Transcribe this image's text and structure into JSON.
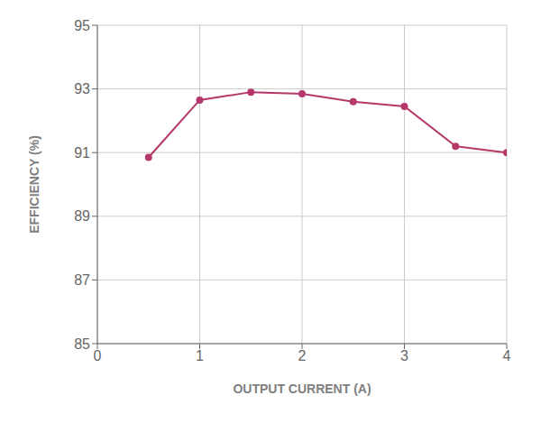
{
  "chart_data": {
    "type": "line",
    "x": [
      0.5,
      1.0,
      1.5,
      2.0,
      2.5,
      3.0,
      3.5,
      4.0
    ],
    "values": [
      90.85,
      92.65,
      92.9,
      92.85,
      92.6,
      92.45,
      91.2,
      91.0
    ],
    "color": "#b5386a",
    "marker": "circle",
    "xlabel": "OUTPUT CURRENT (A)",
    "ylabel": "EFFICIENCY (%)",
    "xlim": [
      0,
      4
    ],
    "ylim": [
      85,
      95
    ],
    "xticks": [
      0,
      1,
      2,
      3,
      4
    ],
    "yticks": [
      85,
      87,
      89,
      91,
      93,
      95
    ],
    "grid": true
  }
}
